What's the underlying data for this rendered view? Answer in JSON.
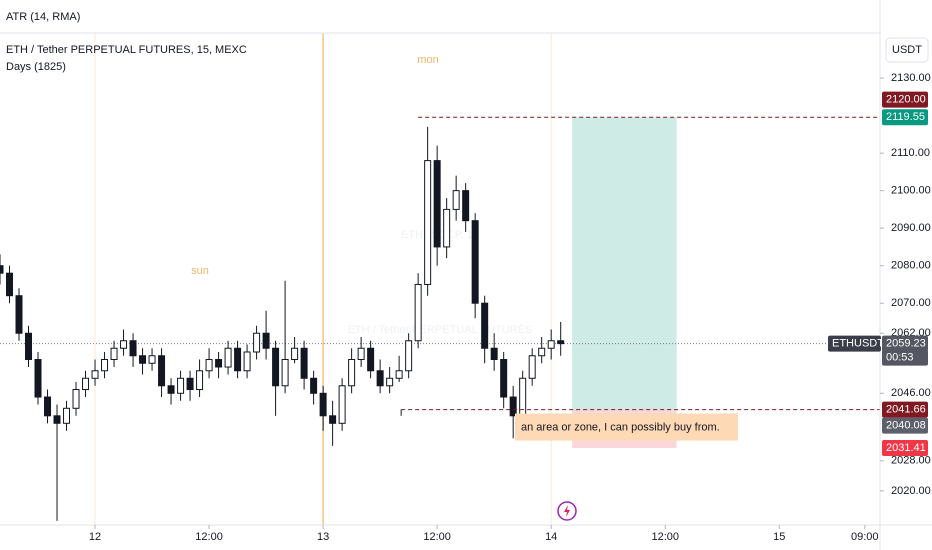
{
  "header": {
    "indicator": "ATR (14, RMA)",
    "currency": "USDT"
  },
  "chart_data": {
    "type": "candlestick",
    "title": "ETH / Tether PERPETUAL FUTURES, 15, MEXC",
    "subtitle": "Days (1825)",
    "watermark": "ETHUSDT.P, 15",
    "watermark_sub": "ETH / Tether PERPETUAL FUTURES",
    "session_labels": [
      "sun",
      "mon"
    ],
    "x": [
      -10,
      -9,
      -8,
      -7,
      -6,
      -5,
      -4,
      -3,
      -2,
      -1,
      0,
      1,
      2,
      3,
      4,
      5,
      6,
      7,
      8,
      9,
      10,
      11,
      12,
      13,
      14,
      15,
      16,
      17,
      18,
      19,
      20,
      21,
      22,
      23,
      24,
      25,
      26,
      27,
      28,
      29,
      30,
      31,
      32,
      33,
      34,
      35,
      36,
      37,
      38,
      39,
      40,
      41,
      42,
      43,
      44,
      45,
      46,
      47,
      48,
      49
    ],
    "open": [
      2080,
      2078,
      2072,
      2062,
      2055,
      2045,
      2040,
      2038,
      2042,
      2047,
      2050,
      2052,
      2055,
      2058,
      2060,
      2056,
      2054,
      2056,
      2048,
      2046,
      2050,
      2047,
      2052,
      2055,
      2053,
      2058,
      2052,
      2057,
      2062,
      2058,
      2048,
      2055,
      2058,
      2050,
      2046,
      2040,
      2038,
      2048,
      2055,
      2058,
      2052,
      2048,
      2050,
      2052,
      2060,
      2075,
      2108,
      2085,
      2095,
      2100,
      2092,
      2070,
      2058,
      2055,
      2045,
      2040,
      2050,
      2056,
      2058,
      2060
    ],
    "high": [
      2083,
      2080,
      2074,
      2064,
      2057,
      2047,
      2043,
      2044,
      2049,
      2052,
      2055,
      2057,
      2060,
      2063,
      2062,
      2058,
      2058,
      2058,
      2050,
      2052,
      2052,
      2055,
      2058,
      2057,
      2060,
      2060,
      2059,
      2064,
      2068,
      2060,
      2076,
      2061,
      2060,
      2052,
      2048,
      2044,
      2050,
      2058,
      2061,
      2060,
      2055,
      2053,
      2056,
      2062,
      2078,
      2117,
      2112,
      2098,
      2104,
      2102,
      2094,
      2072,
      2062,
      2057,
      2048,
      2052,
      2058,
      2061,
      2063,
      2065
    ],
    "low": [
      2075,
      2070,
      2060,
      2053,
      2043,
      2038,
      2012,
      2036,
      2040,
      2045,
      2048,
      2050,
      2053,
      2056,
      2053,
      2051,
      2052,
      2045,
      2043,
      2044,
      2044,
      2045,
      2050,
      2050,
      2051,
      2050,
      2050,
      2055,
      2055,
      2040,
      2046,
      2054,
      2047,
      2043,
      2036,
      2032,
      2036,
      2046,
      2053,
      2050,
      2046,
      2046,
      2049,
      2050,
      2058,
      2072,
      2080,
      2082,
      2092,
      2089,
      2066,
      2054,
      2052,
      2042,
      2034,
      2038,
      2048,
      2054,
      2055,
      2056
    ],
    "close": [
      2078,
      2072,
      2062,
      2055,
      2045,
      2040,
      2038,
      2042,
      2047,
      2050,
      2052,
      2055,
      2058,
      2060,
      2056,
      2054,
      2056,
      2048,
      2046,
      2050,
      2047,
      2052,
      2055,
      2053,
      2058,
      2052,
      2057,
      2062,
      2058,
      2048,
      2055,
      2058,
      2050,
      2046,
      2040,
      2038,
      2048,
      2055,
      2058,
      2052,
      2048,
      2050,
      2052,
      2060,
      2075,
      2108,
      2085,
      2095,
      2100,
      2092,
      2070,
      2058,
      2055,
      2045,
      2040,
      2050,
      2056,
      2058,
      2060,
      2059.23
    ],
    "up_color": "#ffffff",
    "down_color": "#131722",
    "xlim": [
      -10,
      82.6
    ],
    "xticks": [
      {
        "value": 0,
        "label": "12"
      },
      {
        "value": 12,
        "label": "12:00"
      },
      {
        "value": 24,
        "label": "13"
      },
      {
        "value": 36,
        "label": "12:00"
      },
      {
        "value": 48,
        "label": "14"
      },
      {
        "value": 60,
        "label": "12:00"
      },
      {
        "value": 72,
        "label": "15"
      },
      {
        "value": 81,
        "label": "09:00"
      }
    ],
    "ylim": [
      2010.9,
      2150.8
    ],
    "yticks": [
      {
        "value": 2130,
        "label": "2130.00"
      },
      {
        "value": 2110,
        "label": "2110.00"
      },
      {
        "value": 2100,
        "label": "2100.00"
      },
      {
        "value": 2090,
        "label": "2090.00"
      },
      {
        "value": 2080,
        "label": "2080.00"
      },
      {
        "value": 2070,
        "label": "2070.00"
      },
      {
        "value": 2062,
        "label": "2062.00"
      },
      {
        "value": 2046,
        "label": "2046.00"
      },
      {
        "value": 2028,
        "label": "2028.00"
      },
      {
        "value": 2020,
        "label": "2020.00"
      }
    ],
    "grid": false,
    "day_breaks": [
      0,
      48
    ],
    "week_break": 24,
    "symbol": "ETHUSDT.P",
    "current_price": 2059.23,
    "countdown": "00:53",
    "alert_price": {
      "value": 2120,
      "label": "2120.00"
    },
    "other_price": 2040.08,
    "position": {
      "target": 2119.55,
      "entry": 2041.66,
      "stop": 2031.41,
      "x_range": [
        50.2,
        61.2
      ],
      "lines_from": 34
    },
    "annotation": "an area or zone, I can possibly buy from."
  }
}
